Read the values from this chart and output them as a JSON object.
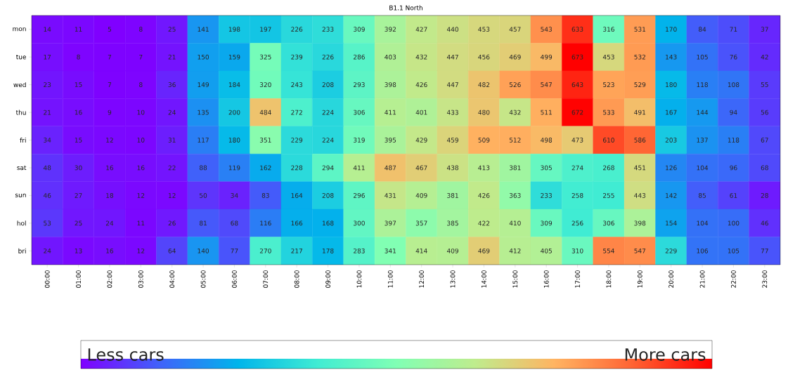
{
  "chart_data": {
    "type": "heatmap",
    "title": "B1.1 North",
    "categories": [
      "00:00",
      "01:00",
      "02:00",
      "03:00",
      "04:00",
      "05:00",
      "06:00",
      "07:00",
      "08:00",
      "09:00",
      "10:00",
      "11:00",
      "12:00",
      "13:00",
      "14:00",
      "15:00",
      "16:00",
      "17:00",
      "18:00",
      "19:00",
      "20:00",
      "21:00",
      "22:00",
      "23:00"
    ],
    "y_categories": [
      "mon",
      "tue",
      "wed",
      "thu",
      "fri",
      "sat",
      "sun",
      "hol",
      "bri"
    ],
    "cells": [
      [
        14,
        11,
        5,
        8,
        25,
        141,
        198,
        197,
        226,
        233,
        309,
        392,
        427,
        440,
        453,
        457,
        543,
        633,
        316,
        531,
        170,
        84,
        71,
        37
      ],
      [
        17,
        8,
        7,
        7,
        21,
        150,
        159,
        325,
        239,
        226,
        286,
        403,
        432,
        447,
        456,
        469,
        499,
        673,
        453,
        532,
        143,
        105,
        76,
        42
      ],
      [
        23,
        15,
        7,
        8,
        36,
        149,
        184,
        320,
        243,
        208,
        293,
        398,
        426,
        447,
        482,
        526,
        547,
        643,
        523,
        529,
        180,
        118,
        108,
        55
      ],
      [
        21,
        16,
        9,
        10,
        24,
        135,
        200,
        484,
        272,
        224,
        306,
        411,
        401,
        433,
        480,
        432,
        511,
        672,
        533,
        491,
        167,
        144,
        94,
        56
      ],
      [
        34,
        15,
        12,
        10,
        31,
        117,
        180,
        351,
        229,
        224,
        319,
        395,
        429,
        459,
        509,
        512,
        498,
        473,
        610,
        586,
        203,
        137,
        118,
        67
      ],
      [
        48,
        30,
        16,
        16,
        22,
        88,
        119,
        162,
        228,
        294,
        411,
        487,
        467,
        438,
        413,
        381,
        305,
        274,
        268,
        451,
        126,
        104,
        96,
        68
      ],
      [
        46,
        27,
        18,
        12,
        12,
        50,
        34,
        83,
        164,
        208,
        296,
        431,
        409,
        381,
        426,
        363,
        233,
        258,
        255,
        443,
        142,
        85,
        61,
        28
      ],
      [
        53,
        25,
        24,
        11,
        26,
        81,
        68,
        116,
        166,
        168,
        300,
        397,
        357,
        385,
        422,
        410,
        309,
        256,
        306,
        398,
        154,
        104,
        100,
        46
      ],
      [
        24,
        13,
        16,
        12,
        64,
        140,
        77,
        270,
        217,
        178,
        283,
        341,
        414,
        409,
        469,
        412,
        405,
        310,
        554,
        547,
        229,
        106,
        105,
        77
      ]
    ],
    "data_labels": true,
    "annotations": [
      "Less cars",
      "More cars"
    ]
  }
}
